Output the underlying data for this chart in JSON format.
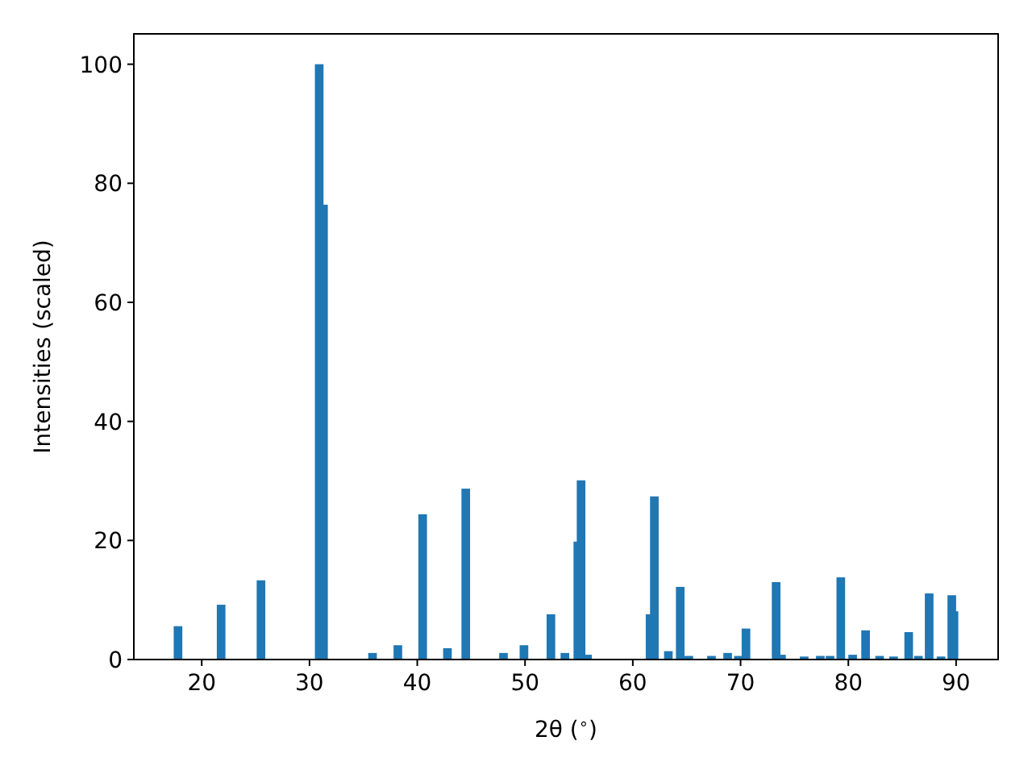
{
  "chart_data": {
    "type": "bar",
    "xlabel": "2θ ($^{∘}$)",
    "ylabel": "Intensities (scaled)",
    "color": "#1f77b4",
    "x": [
      17.8,
      21.8,
      25.5,
      30.9,
      31.3,
      35.85,
      38.2,
      40.5,
      42.8,
      44.5,
      48.0,
      49.9,
      52.4,
      53.7,
      54.9,
      55.2,
      55.8,
      61.6,
      62.0,
      63.3,
      64.4,
      65.2,
      67.3,
      68.8,
      69.8,
      70.5,
      73.3,
      73.8,
      75.9,
      77.4,
      78.3,
      79.3,
      80.4,
      81.6,
      82.9,
      84.2,
      85.6,
      86.5,
      87.5,
      88.6,
      89.6,
      89.8
    ],
    "values": [
      5.6,
      9.2,
      13.3,
      100,
      76.4,
      1.1,
      2.4,
      24.4,
      1.9,
      28.7,
      1.1,
      2.4,
      7.6,
      1.1,
      19.8,
      30.1,
      0.8,
      7.6,
      27.4,
      1.4,
      12.2,
      0.6,
      0.6,
      1.1,
      0.6,
      5.2,
      13.0,
      0.8,
      0.5,
      0.6,
      0.6,
      13.8,
      0.8,
      4.9,
      0.6,
      0.5,
      4.6,
      0.6,
      11.1,
      0.5,
      10.8,
      8.1
    ],
    "xlim": [
      13.7,
      93.9
    ],
    "ylim": [
      0,
      105.1
    ],
    "xticks": [
      20,
      30,
      40,
      50,
      60,
      70,
      80,
      90
    ],
    "yticks": [
      0,
      20,
      40,
      60,
      80,
      100
    ]
  }
}
